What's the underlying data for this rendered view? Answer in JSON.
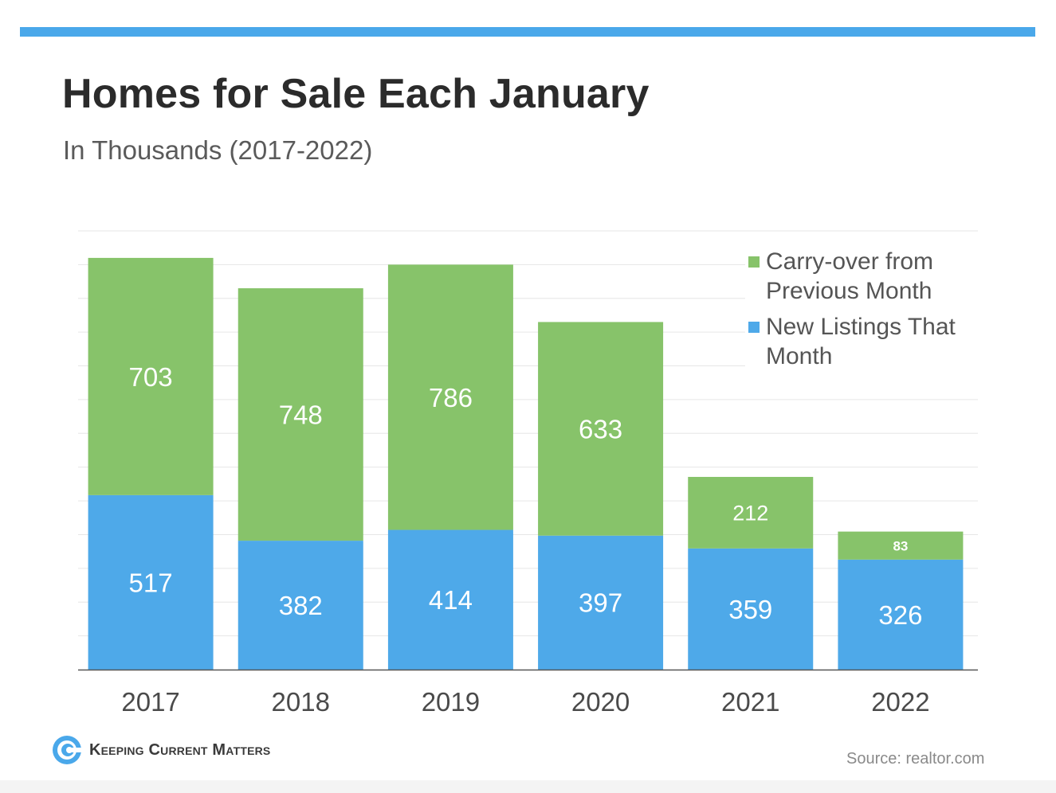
{
  "header": {
    "title": "Homes for Sale Each January",
    "subtitle": "In Thousands (2017-2022)"
  },
  "colors": {
    "accent_bar": "#4aa8ea",
    "carry_over": "#87c36a",
    "new_listings": "#4ea9e9"
  },
  "chart_data": {
    "type": "bar",
    "stacked": true,
    "categories": [
      "2017",
      "2018",
      "2019",
      "2020",
      "2021",
      "2022"
    ],
    "series": [
      {
        "name": "New Listings That Month",
        "values": [
          517,
          382,
          414,
          397,
          359,
          326
        ]
      },
      {
        "name": "Carry-over from Previous Month",
        "values": [
          703,
          748,
          786,
          633,
          212,
          83
        ]
      }
    ],
    "ylim": [
      0,
      1300
    ],
    "grid": true,
    "legend_position": "top-right",
    "title": "Homes for Sale Each January",
    "subtitle": "In Thousands (2017-2022)",
    "xlabel": "",
    "ylabel": ""
  },
  "legend": {
    "items": [
      {
        "label_line1": "Carry-over from",
        "label_line2": "Previous Month"
      },
      {
        "label_line1": "New Listings That",
        "label_line2": "Month"
      }
    ]
  },
  "footer": {
    "brand": "Keeping Current Matters",
    "source": "Source: realtor.com"
  }
}
